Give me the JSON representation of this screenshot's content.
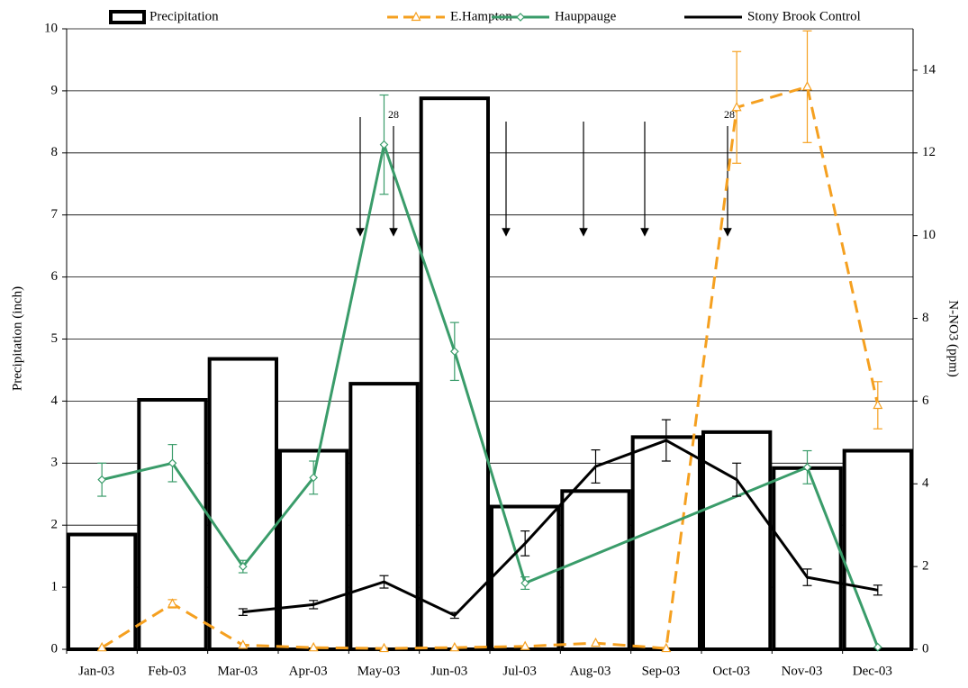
{
  "chart_data": {
    "type": "combo",
    "categories": [
      "Jan-03",
      "Feb-03",
      "Mar-03",
      "Apr-03",
      "May-03",
      "Jun-03",
      "Jul-03",
      "Aug-03",
      "Sep-03",
      "Oct-03",
      "Nov-03",
      "Dec-03"
    ],
    "y_label": "Precipitation (inch)",
    "y2_label": "N-NO3 (ppm)",
    "ylim": [
      0,
      10
    ],
    "yticks": [
      0,
      1,
      2,
      3,
      4,
      5,
      6,
      7,
      8,
      9,
      10
    ],
    "y2lim": [
      0,
      15
    ],
    "y2ticks": [
      0,
      2,
      4,
      6,
      8,
      10,
      12,
      14
    ],
    "grid": true,
    "legend": "top",
    "annotations": [
      {
        "text": "28"
      },
      {
        "text": "28"
      }
    ],
    "series": [
      {
        "name": "Precipitation",
        "type": "bar",
        "color": "#000000",
        "values": [
          1.85,
          4.02,
          4.68,
          3.2,
          4.28,
          8.88,
          2.3,
          2.55,
          3.42,
          3.5,
          2.92,
          3.2
        ]
      },
      {
        "name": "E.Hampton",
        "type": "line",
        "axis": "y2",
        "color": "#f5a020",
        "dashed": true,
        "marker": "triangle",
        "x": [
          "Jan-03",
          "Feb-03",
          "Mar-03",
          "Apr-03",
          "May-03",
          "Jun-03",
          "Jul-03",
          "Aug-03",
          "Sep-03",
          "Oct-03",
          "Nov-03",
          "Dec-03"
        ],
        "values": [
          0.04,
          1.1,
          0.1,
          0.04,
          0.02,
          0.04,
          0.07,
          0.15,
          0.02,
          13.1,
          13.6,
          5.9
        ],
        "errors": [
          null,
          0.1,
          null,
          null,
          null,
          null,
          null,
          null,
          null,
          1.35,
          1.35,
          0.57
        ]
      },
      {
        "name": "Hauppauge",
        "type": "line",
        "axis": "y2",
        "color": "#3a9c6a",
        "dashed": false,
        "marker": "diamond",
        "x": [
          "Jan-03",
          "Feb-03",
          "Mar-03",
          "Apr-03",
          "May-03",
          "Jun-03",
          "Jul-03",
          "Nov-03",
          "Dec-03"
        ],
        "values": [
          4.1,
          4.5,
          2.0,
          4.15,
          12.2,
          7.2,
          1.6,
          4.4,
          0.05
        ],
        "errors": [
          0.4,
          0.45,
          0.15,
          0.4,
          1.2,
          0.7,
          0.15,
          0.4,
          null
        ]
      },
      {
        "name": "Stony Brook Control",
        "type": "line",
        "axis": "y2",
        "color": "#000000",
        "dashed": false,
        "marker": "none",
        "x": [
          "Mar-03",
          "Apr-03",
          "May-03",
          "Jun-03",
          "Jul-03",
          "Aug-03",
          "Sep-03",
          "Oct-03",
          "Nov-03",
          "Dec-03"
        ],
        "values": [
          0.9,
          1.08,
          1.63,
          0.82,
          2.56,
          4.42,
          5.05,
          4.1,
          1.74,
          1.43
        ],
        "errors": [
          0.08,
          0.1,
          0.15,
          0.07,
          0.3,
          0.4,
          0.5,
          0.4,
          0.2,
          0.12
        ]
      }
    ]
  }
}
